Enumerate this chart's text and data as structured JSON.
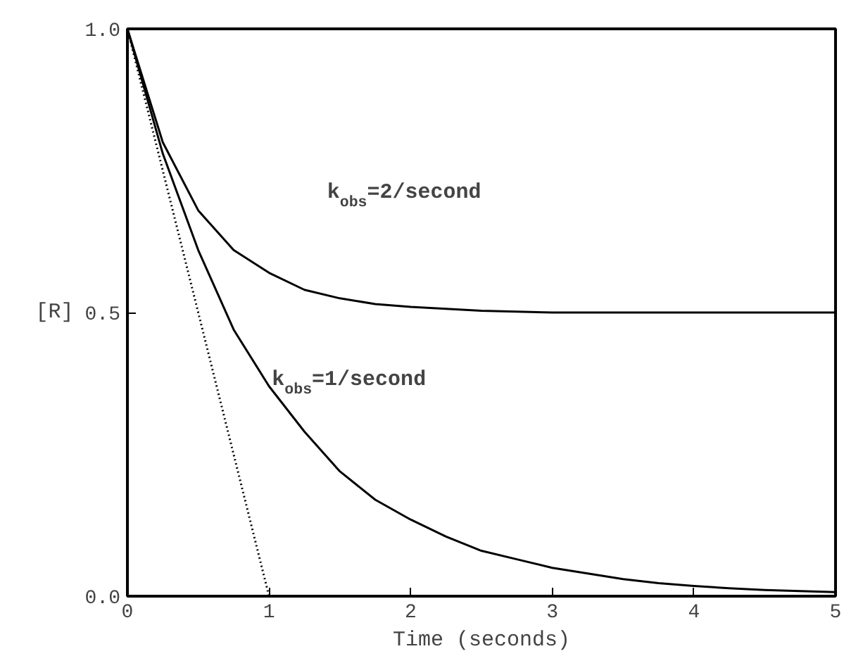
{
  "chart_data": {
    "type": "line",
    "xlabel": "Time (seconds)",
    "ylabel": "[R]",
    "xlim": [
      0,
      5
    ],
    "ylim": [
      0,
      1
    ],
    "xticks": [
      0,
      1,
      2,
      3,
      4,
      5
    ],
    "yticks": [
      {
        "value": 0,
        "label": "0.0"
      },
      {
        "value": 0.5,
        "label": "0.5"
      },
      {
        "value": 1,
        "label": "1.0"
      }
    ],
    "grid": false,
    "marker": "none",
    "series": [
      {
        "color": "#000000",
        "line_style": "solid",
        "x": [
          0,
          0.25,
          0.5,
          0.75,
          1,
          1.25,
          1.5,
          1.75,
          2,
          2.5,
          3,
          3.5,
          4,
          4.5,
          5
        ],
        "values": [
          1,
          0.8,
          0.68,
          0.61,
          0.57,
          0.54,
          0.525,
          0.515,
          0.51,
          0.503,
          0.5,
          0.5,
          0.5,
          0.5,
          0.5
        ]
      },
      {
        "color": "#000000",
        "line_style": "solid",
        "x": [
          0,
          0.25,
          0.5,
          0.75,
          1,
          1.25,
          1.5,
          1.75,
          2,
          2.25,
          2.5,
          2.75,
          3,
          3.25,
          3.5,
          3.75,
          4,
          4.25,
          4.5,
          4.75,
          5
        ],
        "values": [
          1,
          0.78,
          0.61,
          0.47,
          0.37,
          0.29,
          0.22,
          0.17,
          0.135,
          0.105,
          0.08,
          0.065,
          0.05,
          0.04,
          0.03,
          0.023,
          0.018,
          0.014,
          0.011,
          0.009,
          0.007
        ]
      },
      {
        "color": "#000000",
        "line_style": "dotted",
        "x": [
          0,
          1
        ],
        "values": [
          1,
          0
        ]
      }
    ],
    "annotations": [
      "k$_{obs}$=2/second",
      "k$_{obs}$=1/second"
    ]
  }
}
